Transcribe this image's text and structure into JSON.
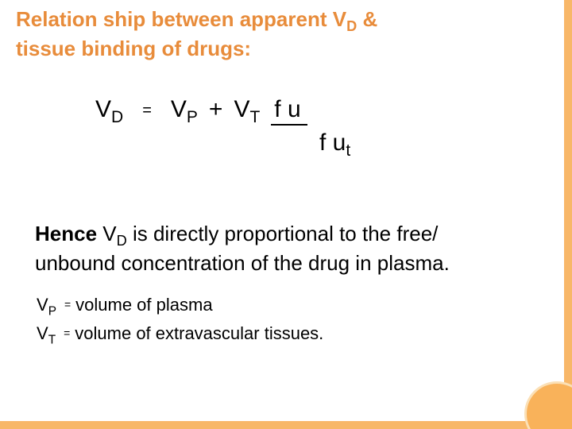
{
  "colors": {
    "accent": "#e88c3b",
    "rail": "#f8b768",
    "circle_fill": "#f9b25a",
    "circle_border": "#fbe0b6",
    "text": "#000000",
    "background": "#ffffff"
  },
  "title": {
    "line1_pre": "Relation ship between apparent  V",
    "line1_sub": "D",
    "line1_post": " &",
    "line2": "tissue binding of drugs:"
  },
  "equation": {
    "lhs_base": "V",
    "lhs_sub": "D",
    "eq": "=",
    "rhs_vp_base": "V",
    "rhs_vp_sub": "P",
    "plus": "+",
    "rhs_vt_base": "V",
    "rhs_vt_sub": "T",
    "fu_top": "f u",
    "fu_bot_pre": "f u",
    "fu_bot_sub": "t"
  },
  "proportional": {
    "strong": "Hence ",
    "vd_base": "V",
    "vd_sub": "D",
    "rest1": "  is directly proportional to the free/",
    "rest2": "unbound concentration of the drug in plasma."
  },
  "defs": {
    "vp_base": "V",
    "vp_sub": "P",
    "eq": "=",
    "vp_text": "volume of plasma",
    "vt_base": "V",
    "vt_sub": "T",
    "vt_text": "volume of extravascular tissues."
  }
}
